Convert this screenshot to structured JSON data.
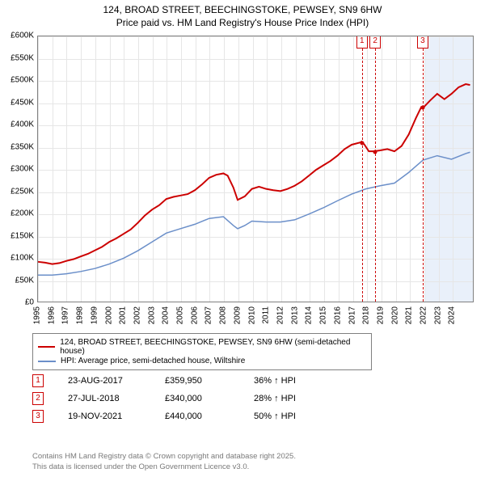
{
  "title": {
    "line1": "124, BROAD STREET, BEECHINGSTOKE, PEWSEY, SN9 6HW",
    "line2": "Price paid vs. HM Land Registry's House Price Index (HPI)",
    "fontsize": 12,
    "color": "#000000"
  },
  "chart": {
    "type": "line",
    "background_color": "#ffffff",
    "plot_border_color": "#808080",
    "grid_color": "#e6e6e6",
    "shade_color": "#e9f0fa",
    "x_year_min": 1995,
    "x_year_max": 2025.5,
    "ylim": [
      0,
      600000
    ],
    "ytick_step": 50000,
    "ytick_labels": [
      "£0",
      "£50K",
      "£100K",
      "£150K",
      "£200K",
      "£250K",
      "£300K",
      "£350K",
      "£400K",
      "£450K",
      "£500K",
      "£550K",
      "£600K"
    ],
    "xtick_years": [
      1995,
      1996,
      1997,
      1998,
      1999,
      2000,
      2001,
      2002,
      2003,
      2004,
      2005,
      2006,
      2007,
      2008,
      2009,
      2010,
      2011,
      2012,
      2013,
      2014,
      2015,
      2016,
      2017,
      2018,
      2019,
      2020,
      2021,
      2022,
      2023,
      2024
    ],
    "future_shade_from_year": 2022.0,
    "series": [
      {
        "name": "price_paid",
        "label": "124, BROAD STREET, BEECHINGSTOKE, PEWSEY, SN9 6HW (semi-detached house)",
        "color": "#cc0000",
        "line_width": 2,
        "points": [
          [
            1995.0,
            90000
          ],
          [
            1995.5,
            88000
          ],
          [
            1996.0,
            85000
          ],
          [
            1996.5,
            87000
          ],
          [
            1997.0,
            92000
          ],
          [
            1997.5,
            96000
          ],
          [
            1998.0,
            102000
          ],
          [
            1998.5,
            108000
          ],
          [
            1999.0,
            116000
          ],
          [
            1999.5,
            124000
          ],
          [
            2000.0,
            135000
          ],
          [
            2000.5,
            143000
          ],
          [
            2001.0,
            153000
          ],
          [
            2001.5,
            163000
          ],
          [
            2002.0,
            178000
          ],
          [
            2002.5,
            195000
          ],
          [
            2003.0,
            208000
          ],
          [
            2003.5,
            218000
          ],
          [
            2004.0,
            232000
          ],
          [
            2004.5,
            237000
          ],
          [
            2005.0,
            240000
          ],
          [
            2005.5,
            243000
          ],
          [
            2006.0,
            252000
          ],
          [
            2006.5,
            265000
          ],
          [
            2007.0,
            280000
          ],
          [
            2007.5,
            287000
          ],
          [
            2008.0,
            290000
          ],
          [
            2008.3,
            285000
          ],
          [
            2008.7,
            258000
          ],
          [
            2009.0,
            230000
          ],
          [
            2009.5,
            238000
          ],
          [
            2010.0,
            255000
          ],
          [
            2010.5,
            260000
          ],
          [
            2011.0,
            255000
          ],
          [
            2011.5,
            252000
          ],
          [
            2012.0,
            250000
          ],
          [
            2012.5,
            255000
          ],
          [
            2013.0,
            262000
          ],
          [
            2013.5,
            272000
          ],
          [
            2014.0,
            285000
          ],
          [
            2014.5,
            298000
          ],
          [
            2015.0,
            308000
          ],
          [
            2015.5,
            318000
          ],
          [
            2016.0,
            330000
          ],
          [
            2016.5,
            345000
          ],
          [
            2017.0,
            355000
          ],
          [
            2017.6,
            359950
          ],
          [
            2017.7,
            362000
          ],
          [
            2017.9,
            355000
          ],
          [
            2018.2,
            340000
          ],
          [
            2018.56,
            340000
          ],
          [
            2019.0,
            342000
          ],
          [
            2019.5,
            345000
          ],
          [
            2020.0,
            340000
          ],
          [
            2020.5,
            352000
          ],
          [
            2021.0,
            378000
          ],
          [
            2021.5,
            415000
          ],
          [
            2021.88,
            440000
          ],
          [
            2022.0,
            438000
          ],
          [
            2022.5,
            455000
          ],
          [
            2023.0,
            470000
          ],
          [
            2023.5,
            458000
          ],
          [
            2024.0,
            470000
          ],
          [
            2024.5,
            485000
          ],
          [
            2025.0,
            492000
          ],
          [
            2025.3,
            490000
          ]
        ]
      },
      {
        "name": "hpi",
        "label": "HPI: Average price, semi-detached house, Wiltshire",
        "color": "#6b8fc9",
        "line_width": 1.5,
        "points": [
          [
            1995.0,
            60000
          ],
          [
            1996.0,
            60000
          ],
          [
            1997.0,
            63000
          ],
          [
            1998.0,
            68000
          ],
          [
            1999.0,
            75000
          ],
          [
            2000.0,
            85000
          ],
          [
            2001.0,
            98000
          ],
          [
            2002.0,
            115000
          ],
          [
            2003.0,
            135000
          ],
          [
            2004.0,
            155000
          ],
          [
            2005.0,
            165000
          ],
          [
            2006.0,
            175000
          ],
          [
            2007.0,
            188000
          ],
          [
            2008.0,
            192000
          ],
          [
            2008.7,
            172000
          ],
          [
            2009.0,
            165000
          ],
          [
            2009.5,
            172000
          ],
          [
            2010.0,
            182000
          ],
          [
            2011.0,
            180000
          ],
          [
            2012.0,
            180000
          ],
          [
            2013.0,
            185000
          ],
          [
            2014.0,
            198000
          ],
          [
            2015.0,
            212000
          ],
          [
            2016.0,
            228000
          ],
          [
            2017.0,
            243000
          ],
          [
            2018.0,
            255000
          ],
          [
            2019.0,
            262000
          ],
          [
            2020.0,
            268000
          ],
          [
            2021.0,
            292000
          ],
          [
            2022.0,
            320000
          ],
          [
            2023.0,
            330000
          ],
          [
            2024.0,
            322000
          ],
          [
            2025.0,
            335000
          ],
          [
            2025.3,
            338000
          ]
        ]
      }
    ],
    "events": [
      {
        "n": "1",
        "year": 2017.64,
        "date": "23-AUG-2017",
        "price": "£359,950",
        "hpi_delta": "36% ↑ HPI"
      },
      {
        "n": "2",
        "year": 2018.56,
        "date": "27-JUL-2018",
        "price": "£340,000",
        "hpi_delta": "28% ↑ HPI"
      },
      {
        "n": "3",
        "year": 2021.88,
        "date": "19-NOV-2021",
        "price": "£440,000",
        "hpi_delta": "50% ↑ HPI"
      }
    ]
  },
  "legend": {
    "border_color": "#808080",
    "fontsize": 10
  },
  "attribution": {
    "line1": "Contains HM Land Registry data © Crown copyright and database right 2025.",
    "line2": "This data is licensed under the Open Government Licence v3.0.",
    "color": "#7a7a7a",
    "fontsize": 9.5
  }
}
